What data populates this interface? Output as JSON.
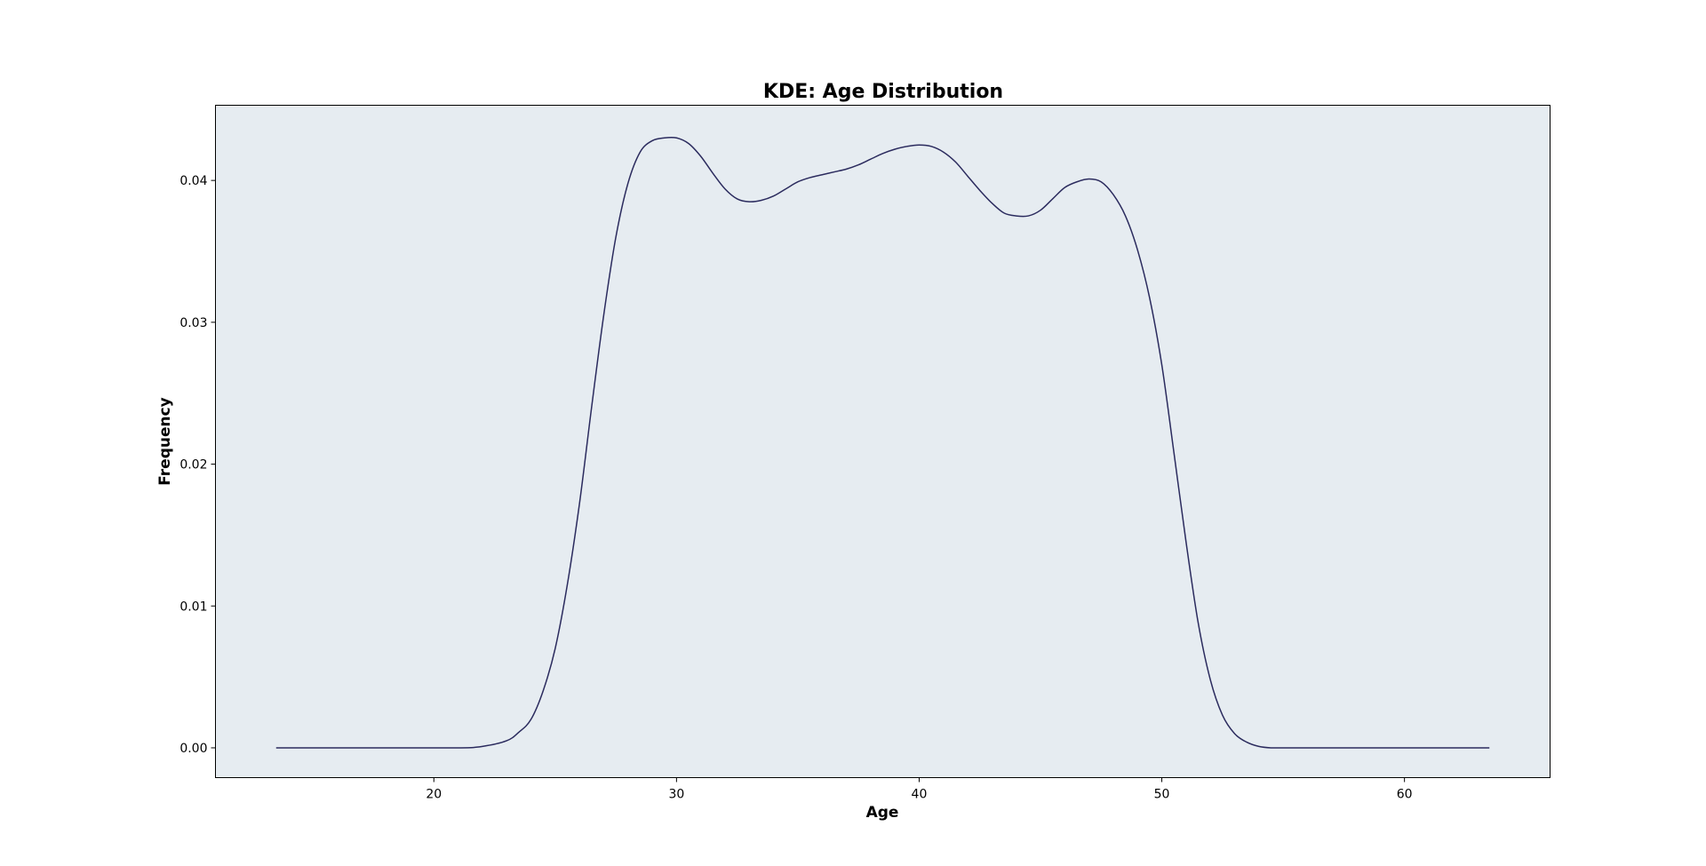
{
  "chart_data": {
    "type": "line",
    "title": "KDE: Age Distribution",
    "xlabel": "Age",
    "ylabel": "Frequency",
    "xlim": [
      11,
      66
    ],
    "ylim": [
      -0.0021,
      0.0453
    ],
    "xticks": [
      20,
      30,
      40,
      50,
      60
    ],
    "yticks": [
      0.0,
      0.01,
      0.02,
      0.03,
      0.04
    ],
    "xtick_labels": [
      "20",
      "30",
      "40",
      "50",
      "60"
    ],
    "ytick_labels": [
      "0.00",
      "0.01",
      "0.02",
      "0.03",
      "0.04"
    ],
    "grid": false,
    "legend": false,
    "colors": {
      "plot_background": "#e6ecf1",
      "line": "#2b2b5e",
      "axes": "#000000"
    },
    "series": [
      {
        "x": [
          13.5,
          18,
          21,
          22,
          23,
          23.5,
          24,
          24.5,
          25,
          25.5,
          26,
          26.5,
          27,
          27.5,
          28,
          28.5,
          29,
          29.5,
          30,
          30.5,
          31,
          31.5,
          32,
          32.5,
          33,
          33.5,
          34,
          34.5,
          35,
          35.5,
          36,
          36.5,
          37,
          37.5,
          38,
          38.5,
          39,
          39.5,
          40,
          40.5,
          41,
          41.5,
          42,
          42.5,
          43,
          43.5,
          44,
          44.5,
          45,
          45.5,
          46,
          46.5,
          47,
          47.5,
          48,
          48.5,
          49,
          49.5,
          50,
          50.5,
          51,
          51.5,
          52,
          52.5,
          53,
          53.5,
          54,
          54.5,
          55,
          56,
          57,
          63.5
        ],
        "y": [
          0.0,
          0.0,
          0.0,
          0.0001,
          0.0005,
          0.0011,
          0.002,
          0.004,
          0.007,
          0.0115,
          0.0172,
          0.024,
          0.0305,
          0.036,
          0.0398,
          0.042,
          0.0428,
          0.043,
          0.043,
          0.0426,
          0.0417,
          0.0405,
          0.0394,
          0.0387,
          0.0385,
          0.0386,
          0.0389,
          0.0394,
          0.0399,
          0.0402,
          0.0404,
          0.0406,
          0.0408,
          0.0411,
          0.0415,
          0.0419,
          0.0422,
          0.0424,
          0.0425,
          0.0424,
          0.042,
          0.0413,
          0.0403,
          0.0393,
          0.0384,
          0.0377,
          0.0375,
          0.0375,
          0.0379,
          0.0387,
          0.0395,
          0.0399,
          0.0401,
          0.0399,
          0.039,
          0.0375,
          0.0351,
          0.0317,
          0.027,
          0.0208,
          0.0145,
          0.0088,
          0.0048,
          0.0023,
          0.001,
          0.0004,
          0.0001,
          0.0,
          0.0,
          0.0,
          0.0,
          0.0
        ]
      }
    ]
  }
}
